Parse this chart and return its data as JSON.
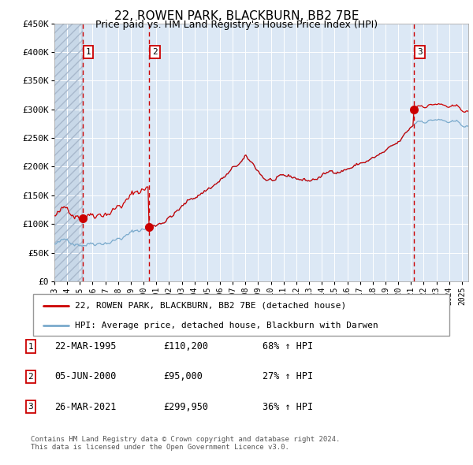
{
  "title": "22, ROWEN PARK, BLACKBURN, BB2 7BE",
  "subtitle": "Price paid vs. HM Land Registry's House Price Index (HPI)",
  "legend_label_red": "22, ROWEN PARK, BLACKBURN, BB2 7BE (detached house)",
  "legend_label_blue": "HPI: Average price, detached house, Blackburn with Darwen",
  "footer1": "Contains HM Land Registry data © Crown copyright and database right 2024.",
  "footer2": "This data is licensed under the Open Government Licence v3.0.",
  "transactions": [
    {
      "num": "1",
      "date": "22-MAR-1995",
      "price": "£110,200",
      "hpi_pct": "68% ↑ HPI"
    },
    {
      "num": "2",
      "date": "05-JUN-2000",
      "price": "£95,000",
      "hpi_pct": "27% ↑ HPI"
    },
    {
      "num": "3",
      "date": "26-MAR-2021",
      "price": "£299,950",
      "hpi_pct": "36% ↑ HPI"
    }
  ],
  "transaction_dates_decimal": [
    1995.222,
    2000.426,
    2021.228
  ],
  "transaction_prices": [
    110200,
    95000,
    299950
  ],
  "color_red": "#cc0000",
  "color_blue": "#7aaacc",
  "color_vline": "#cc0000",
  "ylim": [
    0,
    450000
  ],
  "xlim_start": 1993.0,
  "xlim_end": 2025.5,
  "yticks": [
    0,
    50000,
    100000,
    150000,
    200000,
    250000,
    300000,
    350000,
    400000,
    450000
  ],
  "ytick_labels": [
    "£0",
    "£50K",
    "£100K",
    "£150K",
    "£200K",
    "£250K",
    "£300K",
    "£350K",
    "£400K",
    "£450K"
  ],
  "xtick_years": [
    1993,
    1994,
    1995,
    1996,
    1997,
    1998,
    1999,
    2000,
    2001,
    2002,
    2003,
    2004,
    2005,
    2006,
    2007,
    2008,
    2009,
    2010,
    2011,
    2012,
    2013,
    2014,
    2015,
    2016,
    2017,
    2018,
    2019,
    2020,
    2021,
    2022,
    2023,
    2024,
    2025
  ]
}
